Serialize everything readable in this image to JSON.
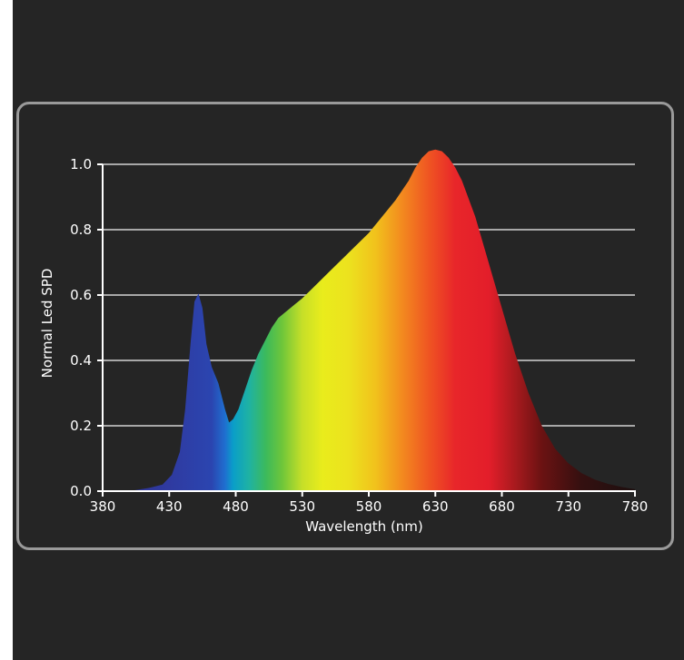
{
  "chart_data": {
    "type": "area",
    "xlabel": "Wavelength (nm)",
    "ylabel": "Normal Led SPD",
    "xlim": [
      380,
      780
    ],
    "ylim": [
      0,
      1.0
    ],
    "x_ticks": [
      380,
      430,
      480,
      530,
      580,
      630,
      680,
      730,
      780
    ],
    "y_ticks": [
      0.0,
      0.2,
      0.4,
      0.6,
      0.8,
      1.0
    ],
    "y_tick_labels": [
      "0.0",
      "0.2",
      "0.4",
      "0.6",
      "0.8",
      "1.0"
    ],
    "grid": "horizontal",
    "fill": "visible spectrum gradient",
    "series": [
      {
        "x": [
          380,
          400,
          415,
          425,
          432,
          438,
          442,
          446,
          449,
          452,
          455,
          458,
          462,
          467,
          472,
          475,
          478,
          482,
          487,
          492,
          497,
          502,
          507,
          512,
          518,
          524,
          530,
          540,
          550,
          560,
          570,
          580,
          590,
          600,
          610,
          615,
          620,
          625,
          630,
          635,
          640,
          645,
          650,
          660,
          670,
          680,
          690,
          700,
          710,
          720,
          730,
          740,
          750,
          760,
          770,
          780
        ],
        "y": [
          0.0,
          0.0,
          0.01,
          0.02,
          0.05,
          0.12,
          0.25,
          0.45,
          0.58,
          0.605,
          0.56,
          0.45,
          0.38,
          0.33,
          0.25,
          0.21,
          0.22,
          0.25,
          0.31,
          0.37,
          0.42,
          0.46,
          0.5,
          0.53,
          0.55,
          0.57,
          0.59,
          0.63,
          0.67,
          0.71,
          0.75,
          0.79,
          0.84,
          0.89,
          0.95,
          0.99,
          1.02,
          1.04,
          1.045,
          1.04,
          1.02,
          0.99,
          0.95,
          0.84,
          0.7,
          0.56,
          0.42,
          0.3,
          0.2,
          0.13,
          0.085,
          0.055,
          0.035,
          0.022,
          0.013,
          0.006
        ]
      }
    ]
  },
  "colors": {
    "background": "#252525",
    "frame": "#9a9a9a",
    "grid": "#a8a8a8",
    "axis": "#ffffff"
  }
}
